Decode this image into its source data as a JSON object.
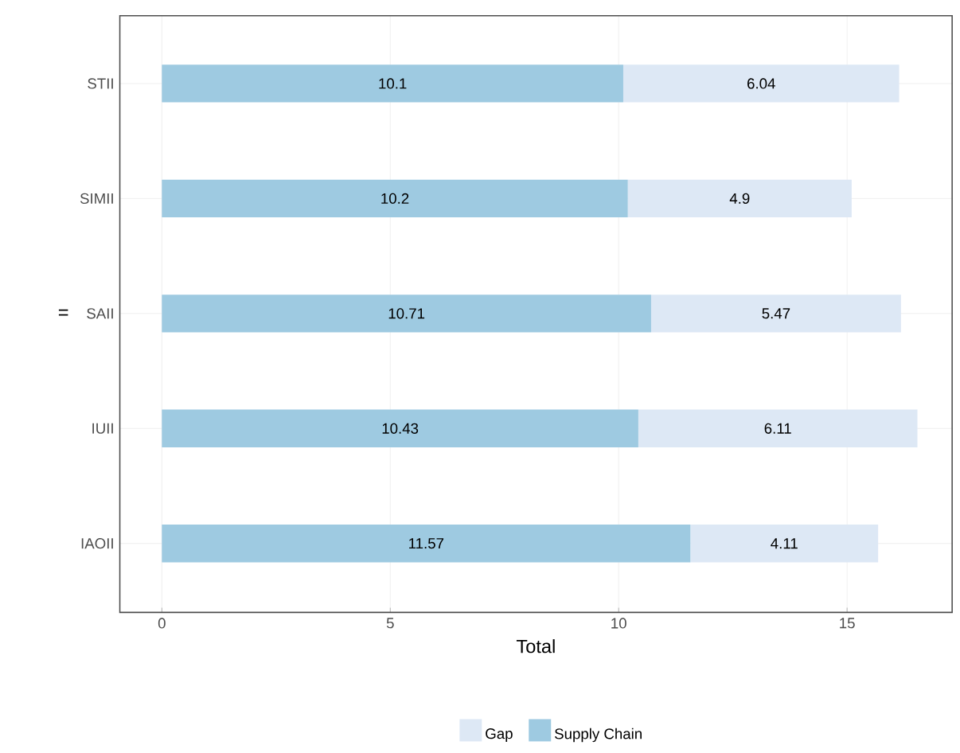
{
  "chart_data": {
    "type": "bar",
    "orientation": "horizontal",
    "stacked": true,
    "xlabel": "Total",
    "ylabel": "=",
    "categories": [
      "STII",
      "SIMII",
      "SAII",
      "IUII",
      "IAOII"
    ],
    "series": [
      {
        "name": "Supply Chain",
        "color": "#9ecae1",
        "values": [
          10.1,
          10.2,
          10.71,
          10.43,
          11.57
        ]
      },
      {
        "name": "Gap",
        "color": "#dde8f5",
        "values": [
          6.04,
          4.9,
          5.47,
          6.11,
          4.11
        ]
      }
    ],
    "xlim": [
      -0.92,
      17.3
    ],
    "xticks": [
      0,
      5,
      10,
      15
    ],
    "grid": true,
    "legend": "bottom",
    "data_labels": true
  }
}
